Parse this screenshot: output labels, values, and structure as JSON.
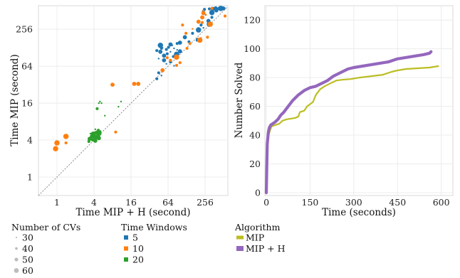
{
  "chart_data": [
    {
      "type": "scatter",
      "xlabel": "Time MIP + H (second)",
      "ylabel": "Time MIP (second)",
      "xscale": "log2",
      "yscale": "log2",
      "xticks": [
        "1",
        "4",
        "16",
        "64",
        "256"
      ],
      "yticks": [
        "1",
        "4",
        "16",
        "64",
        "256"
      ],
      "xlim": [
        0.5,
        600
      ],
      "ylim": [
        0.5,
        620
      ],
      "diagonal": true,
      "grid": true,
      "legends": [
        {
          "title": "Number of CVs",
          "items": [
            {
              "label": "30",
              "size": 30
            },
            {
              "label": "40",
              "size": 40
            },
            {
              "label": "50",
              "size": 50
            },
            {
              "label": "60",
              "size": 60
            }
          ]
        },
        {
          "title": "Time Windows",
          "items": [
            {
              "label": "5",
              "color": "#1f77b4"
            },
            {
              "label": "10",
              "color": "#ff7f0e"
            },
            {
              "label": "20",
              "color": "#2ca02c"
            }
          ]
        }
      ],
      "series": [
        {
          "name": "5",
          "color": "#1f77b4",
          "points": [
            [
              470,
              560,
              40
            ],
            [
              430,
              560,
              40
            ],
            [
              500,
              560,
              50
            ],
            [
              520,
              560,
              40
            ],
            [
              460,
              560,
              60
            ],
            [
              380,
              560,
              50
            ],
            [
              400,
              560,
              30
            ],
            [
              340,
              550,
              50
            ],
            [
              300,
              550,
              40
            ],
            [
              250,
              540,
              40
            ],
            [
              330,
              480,
              60
            ],
            [
              390,
              520,
              50
            ],
            [
              240,
              500,
              40
            ],
            [
              260,
              440,
              30
            ],
            [
              330,
              400,
              40
            ],
            [
              290,
              350,
              50
            ],
            [
              300,
              310,
              60
            ],
            [
              220,
              300,
              40
            ],
            [
              240,
              270,
              30
            ],
            [
              200,
              250,
              60
            ],
            [
              160,
              220,
              40
            ],
            [
              120,
              190,
              50
            ],
            [
              190,
              180,
              30
            ],
            [
              190,
              170,
              40
            ],
            [
              140,
              160,
              40
            ],
            [
              100,
              155,
              50
            ],
            [
              90,
              150,
              40
            ],
            [
              75,
              140,
              30
            ],
            [
              60,
              120,
              40
            ],
            [
              48,
              110,
              50
            ],
            [
              70,
              110,
              30
            ],
            [
              88,
              100,
              60
            ],
            [
              62,
              102,
              40
            ],
            [
              45,
              85,
              30
            ],
            [
              55,
              95,
              50
            ],
            [
              65,
              130,
              40
            ],
            [
              80,
              125,
              30
            ],
            [
              50,
              125,
              40
            ],
            [
              48,
              140,
              60
            ],
            [
              70,
              145,
              50
            ],
            [
              52,
              128,
              30
            ],
            [
              42,
              115,
              40
            ],
            [
              90,
              118,
              30
            ],
            [
              100,
              112,
              50
            ],
            [
              78,
              92,
              40
            ],
            [
              60,
              70,
              30
            ],
            [
              70,
              75,
              40
            ],
            [
              80,
              65,
              30
            ],
            [
              55,
              80,
              50
            ],
            [
              45,
              50,
              40
            ],
            [
              50,
              45,
              30
            ],
            [
              42,
              40,
              40
            ]
          ]
        },
        {
          "name": "10",
          "color": "#ff7f0e",
          "points": [
            [
              0.95,
              2.9,
              60
            ],
            [
              1.0,
              3.6,
              60
            ],
            [
              1.4,
              4.6,
              60
            ],
            [
              1.4,
              3.6,
              40
            ],
            [
              9,
              5.4,
              40
            ],
            [
              8,
              32,
              50
            ],
            [
              18,
              33,
              50
            ],
            [
              21,
              33,
              50
            ],
            [
              88,
              90,
              60
            ],
            [
              52,
              55,
              50
            ],
            [
              62,
              88,
              40
            ],
            [
              88,
              66,
              40
            ],
            [
              100,
              73,
              40
            ],
            [
              130,
              125,
              40
            ],
            [
              145,
              150,
              40
            ],
            [
              210,
              170,
              60
            ],
            [
              220,
              185,
              30
            ],
            [
              230,
              330,
              40
            ],
            [
              265,
              440,
              30
            ],
            [
              230,
              400,
              50
            ],
            [
              110,
              300,
              40
            ],
            [
              160,
              260,
              30
            ],
            [
              310,
              310,
              60
            ],
            [
              540,
              420,
              40
            ],
            [
              330,
              560,
              40
            ],
            [
              240,
              520,
              30
            ],
            [
              200,
              340,
              50
            ],
            [
              280,
              190,
              40
            ],
            [
              70,
              80,
              40
            ],
            [
              240,
              470,
              50
            ],
            [
              125,
              220,
              40
            ]
          ]
        },
        {
          "name": "20",
          "color": "#2ca02c",
          "points": [
            [
              3.4,
              4.2,
              50
            ],
            [
              3.7,
              4.6,
              50
            ],
            [
              3.9,
              5.0,
              60
            ],
            [
              4.1,
              4.4,
              50
            ],
            [
              4.4,
              5.3,
              50
            ],
            [
              3.8,
              4.0,
              40
            ],
            [
              4.2,
              3.9,
              50
            ],
            [
              4.6,
              4.5,
              60
            ],
            [
              4.0,
              5.2,
              40
            ],
            [
              4.5,
              5.0,
              30
            ],
            [
              3.3,
              3.8,
              40
            ],
            [
              3.6,
              4.2,
              40
            ],
            [
              4.8,
              4.3,
              50
            ],
            [
              5.0,
              5.5,
              40
            ],
            [
              4.2,
              6.0,
              30
            ],
            [
              4.7,
              5.8,
              40
            ],
            [
              3.5,
              5.1,
              30
            ],
            [
              3.9,
              4.8,
              50
            ],
            [
              4.3,
              4.6,
              30
            ],
            [
              4.9,
              5.1,
              50
            ],
            [
              4.5,
              13,
              40
            ],
            [
              4.8,
              16,
              30
            ],
            [
              5.0,
              17,
              30
            ],
            [
              5.3,
              16,
              30
            ],
            [
              6.0,
              10,
              30
            ],
            [
              10,
              14,
              30
            ],
            [
              11,
              17,
              30
            ]
          ]
        }
      ]
    },
    {
      "type": "line",
      "xlabel": "Time (seconds)",
      "ylabel": "Number Solved",
      "xticks": [
        "0",
        "150",
        "300",
        "450",
        "600"
      ],
      "yticks": [
        "0",
        "20",
        "40",
        "60",
        "80",
        "100",
        "120"
      ],
      "xlim": [
        -5,
        640
      ],
      "ylim": [
        -2,
        130
      ],
      "grid": true,
      "legend": {
        "title": "Algorithm",
        "placement": "bottom-right"
      },
      "series": [
        {
          "name": "MIP",
          "color": "#bcbd22",
          "width": 2.2,
          "points": [
            [
              0,
              0
            ],
            [
              2,
              8
            ],
            [
              3,
              26
            ],
            [
              4,
              36
            ],
            [
              6,
              40
            ],
            [
              8,
              40
            ],
            [
              12,
              43
            ],
            [
              18,
              46
            ],
            [
              30,
              47
            ],
            [
              45,
              48
            ],
            [
              55,
              50
            ],
            [
              70,
              51
            ],
            [
              100,
              52
            ],
            [
              110,
              53
            ],
            [
              115,
              56
            ],
            [
              130,
              57
            ],
            [
              140,
              60
            ],
            [
              160,
              63
            ],
            [
              170,
              68
            ],
            [
              185,
              72
            ],
            [
              200,
              74
            ],
            [
              220,
              76
            ],
            [
              240,
              78
            ],
            [
              260,
              78.5
            ],
            [
              290,
              79
            ],
            [
              320,
              80
            ],
            [
              360,
              81
            ],
            [
              400,
              82
            ],
            [
              430,
              84
            ],
            [
              450,
              85
            ],
            [
              480,
              86
            ],
            [
              520,
              86.5
            ],
            [
              560,
              87
            ],
            [
              590,
              88
            ]
          ]
        },
        {
          "name": "MIP + H",
          "color": "#9467bd",
          "width": 4.2,
          "points": [
            [
              0,
              0
            ],
            [
              2,
              24
            ],
            [
              3,
              34
            ],
            [
              5,
              38
            ],
            [
              7,
              42
            ],
            [
              10,
              45
            ],
            [
              15,
              47
            ],
            [
              22,
              48
            ],
            [
              30,
              49
            ],
            [
              40,
              51
            ],
            [
              50,
              54
            ],
            [
              60,
              56
            ],
            [
              75,
              60
            ],
            [
              90,
              64
            ],
            [
              110,
              68
            ],
            [
              130,
              71
            ],
            [
              150,
              73
            ],
            [
              170,
              74
            ],
            [
              190,
              76
            ],
            [
              210,
              78
            ],
            [
              230,
              81
            ],
            [
              260,
              84
            ],
            [
              280,
              86
            ],
            [
              300,
              87
            ],
            [
              330,
              88
            ],
            [
              360,
              89
            ],
            [
              390,
              90
            ],
            [
              420,
              91
            ],
            [
              450,
              93
            ],
            [
              480,
              94
            ],
            [
              510,
              95
            ],
            [
              540,
              96
            ],
            [
              560,
              97
            ],
            [
              565,
              98
            ]
          ]
        }
      ]
    }
  ]
}
